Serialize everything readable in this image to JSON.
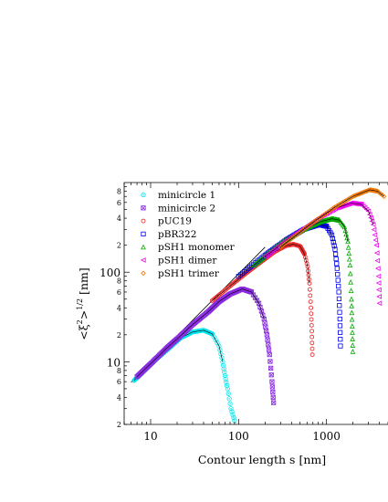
{
  "chart_data": {
    "type": "scatter",
    "xlabel": "Contour length s [nm]",
    "ylabel": "<ξ²>^{1/2} [nm]",
    "ylabel_parts": {
      "open": "<",
      "xi": "ξ",
      "sup2": "2",
      "close": ">",
      "sup_half": "1/2",
      "unit": "[nm]"
    },
    "x_scale": "log",
    "y_scale": "log",
    "xlim": [
      5,
      5000
    ],
    "ylim": [
      2,
      1000
    ],
    "x_major_ticks": [
      10,
      100,
      1000
    ],
    "x_tick_labels": [
      "10",
      "100",
      "1000"
    ],
    "y_major_ticks": [
      10,
      100
    ],
    "y_tick_labels": [
      "10",
      "100"
    ],
    "y_minor_labeled": [
      4,
      6,
      8,
      40,
      60,
      80,
      200,
      400,
      600,
      800
    ],
    "y_minor_labels": [
      "4",
      "6",
      "8",
      "4",
      "6",
      "8",
      "2",
      "4",
      "6",
      "8"
    ],
    "y_minor_label_row2": [
      2,
      20
    ],
    "y_minor_label_row2_text": [
      "2",
      "2"
    ],
    "legend_position": "top-left",
    "series": [
      {
        "name": "minicircle 1",
        "color": "#00e5ee",
        "marker": "circle-dot",
        "L": 90,
        "peak": [
          38,
          22.5
        ],
        "points": [
          [
            6.5,
            6.2
          ],
          [
            8,
            7.5
          ],
          [
            12,
            11
          ],
          [
            16,
            14
          ],
          [
            22,
            18.5
          ],
          [
            30,
            21.5
          ],
          [
            40,
            22.5
          ],
          [
            50,
            20.5
          ],
          [
            60,
            15
          ],
          [
            66,
            10
          ],
          [
            70,
            7
          ],
          [
            75,
            5
          ],
          [
            82,
            3
          ],
          [
            90,
            2.2
          ]
        ]
      },
      {
        "name": "minicircle 2",
        "color": "#8a2be2",
        "marker": "square-x",
        "L": 250,
        "peak": [
          110,
          65
        ],
        "points": [
          [
            7,
            6.8
          ],
          [
            10,
            9.5
          ],
          [
            15,
            14
          ],
          [
            20,
            18
          ],
          [
            30,
            26
          ],
          [
            45,
            36
          ],
          [
            60,
            47
          ],
          [
            80,
            57
          ],
          [
            110,
            65
          ],
          [
            140,
            60
          ],
          [
            170,
            45
          ],
          [
            195,
            30
          ],
          [
            210,
            20
          ],
          [
            225,
            12
          ],
          [
            240,
            6
          ],
          [
            250,
            3.5
          ]
        ]
      },
      {
        "name": "pUC19",
        "color": "#ee2c2c",
        "marker": "hexagon",
        "L": 700,
        "peak": [
          420,
          205
        ],
        "points": [
          [
            50,
            48
          ],
          [
            80,
            70
          ],
          [
            120,
            96
          ],
          [
            180,
            130
          ],
          [
            260,
            170
          ],
          [
            350,
            198
          ],
          [
            420,
            205
          ],
          [
            500,
            195
          ],
          [
            560,
            160
          ],
          [
            610,
            115
          ],
          [
            640,
            75
          ],
          [
            665,
            40
          ],
          [
            680,
            22
          ],
          [
            690,
            12
          ]
        ]
      },
      {
        "name": "pBR322",
        "color": "#0000ee",
        "marker": "square",
        "L": 1450,
        "peak": [
          830,
          340
        ],
        "points": [
          [
            100,
            90
          ],
          [
            200,
            155
          ],
          [
            350,
            230
          ],
          [
            550,
            300
          ],
          [
            830,
            340
          ],
          [
            1000,
            325
          ],
          [
            1150,
            260
          ],
          [
            1250,
            180
          ],
          [
            1320,
            110
          ],
          [
            1380,
            60
          ],
          [
            1420,
            30
          ],
          [
            1440,
            15
          ]
        ]
      },
      {
        "name": "pSH1 monomer",
        "color": "#00aa00",
        "marker": "triangle-up",
        "L": 2000,
        "peak": [
          1150,
          395
        ],
        "points": [
          [
            150,
            120
          ],
          [
            300,
            210
          ],
          [
            550,
            300
          ],
          [
            850,
            365
          ],
          [
            1150,
            395
          ],
          [
            1400,
            380
          ],
          [
            1600,
            320
          ],
          [
            1750,
            220
          ],
          [
            1850,
            120
          ],
          [
            1920,
            50
          ],
          [
            1960,
            25
          ],
          [
            1990,
            13
          ]
        ]
      },
      {
        "name": "pSH1 dimer",
        "color": "#ee00ee",
        "marker": "triangle-left",
        "L": 4100,
        "peak": [
          1900,
          590
        ],
        "points": [
          [
            200,
            150
          ],
          [
            400,
            250
          ],
          [
            800,
            400
          ],
          [
            1300,
            520
          ],
          [
            1900,
            590
          ],
          [
            2500,
            570
          ],
          [
            3000,
            480
          ],
          [
            3400,
            340
          ],
          [
            3700,
            200
          ],
          [
            3900,
            90
          ],
          [
            4000,
            45
          ]
        ]
      },
      {
        "name": "pSH1 trimer",
        "color": "#ee7600",
        "marker": "diamond",
        "L": 6200,
        "peak": [
          3100,
          830
        ],
        "points": [
          [
            300,
            190
          ],
          [
            600,
            320
          ],
          [
            1200,
            520
          ],
          [
            2000,
            700
          ],
          [
            3100,
            830
          ],
          [
            3800,
            800
          ],
          [
            4500,
            700
          ]
        ]
      }
    ],
    "fit_lines": [
      {
        "name": "straight-line",
        "points": [
          [
            6,
            5.9
          ],
          [
            200,
            190
          ]
        ]
      }
    ]
  }
}
